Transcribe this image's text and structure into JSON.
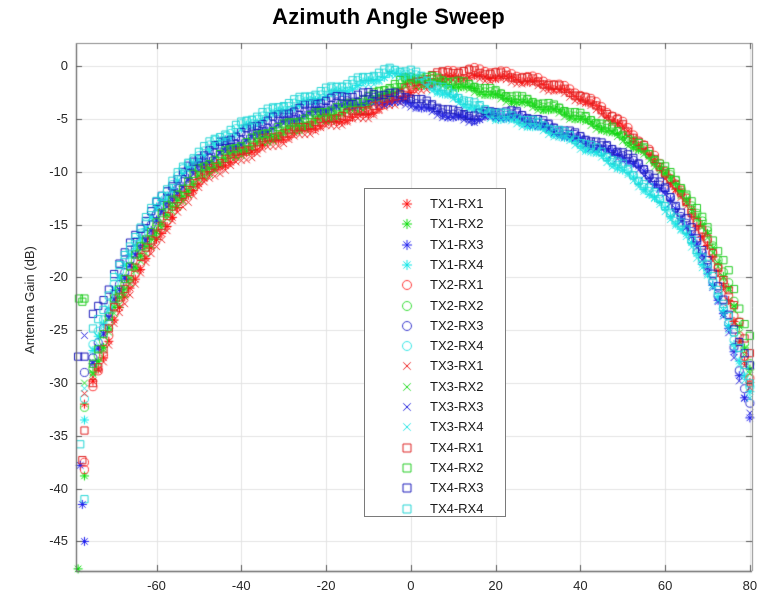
{
  "chart_data": {
    "type": "scatter",
    "title": "Azimuth Angle Sweep",
    "xlabel": "",
    "ylabel": "Antenna Gain (dB)",
    "xlim": [
      -79,
      80.5
    ],
    "ylim": [
      -47.8,
      2.2
    ],
    "xticks": [
      -60,
      -40,
      -20,
      0,
      20,
      40,
      60,
      80
    ],
    "yticks": [
      0,
      -5,
      -10,
      -15,
      -20,
      -25,
      -30,
      -35,
      -40,
      -45
    ],
    "grid": true,
    "legend_position": "center (inside axes)",
    "x": [
      -77,
      -75,
      -72,
      -70,
      -65,
      -60,
      -55,
      -50,
      -45,
      -40,
      -35,
      -30,
      -25,
      -20,
      -15,
      -10,
      -5,
      0,
      5,
      10,
      15,
      20,
      25,
      30,
      35,
      40,
      45,
      50,
      55,
      60,
      65,
      70,
      72,
      75,
      78,
      80
    ],
    "series": [
      {
        "name": "TX1-RX1",
        "color": "#ff0000",
        "marker": "asterisk",
        "values": [
          -32,
          -30,
          -27,
          -24,
          -20,
          -16.5,
          -13.5,
          -11,
          -9.5,
          -8.5,
          -7.5,
          -6.8,
          -6,
          -5.5,
          -5,
          -4.5,
          -3.5,
          -2.5,
          -1.5,
          -1,
          -1,
          -1,
          -1.2,
          -1.6,
          -2.2,
          -3,
          -4.2,
          -5.8,
          -7.8,
          -10.2,
          -13,
          -17,
          -19,
          -22,
          -27,
          -30
        ]
      },
      {
        "name": "TX1-RX2",
        "color": "#00dd00",
        "marker": "asterisk",
        "values": [
          -38.8,
          -29,
          -26,
          -23,
          -19,
          -15.5,
          -12.8,
          -10.5,
          -9,
          -8,
          -7,
          -6.2,
          -5.5,
          -4.8,
          -4.2,
          -3.5,
          -2.5,
          -1.5,
          -1.5,
          -1.8,
          -2.2,
          -2.8,
          -3.3,
          -3.8,
          -4.3,
          -5,
          -5.8,
          -6.8,
          -8.2,
          -10,
          -12.5,
          -16,
          -18,
          -21,
          -25.5,
          -28.5
        ]
      },
      {
        "name": "TX1-RX3",
        "color": "#1a1aee",
        "marker": "asterisk",
        "values": [
          -45,
          -28,
          -25,
          -22,
          -18,
          -14.5,
          -11.8,
          -9.5,
          -8.2,
          -7.2,
          -6.2,
          -5.3,
          -4.6,
          -4,
          -3.6,
          -3.4,
          -3.3,
          -3.5,
          -4.2,
          -4.8,
          -5,
          -4.6,
          -4.8,
          -5.5,
          -6.3,
          -7,
          -7.8,
          -8.5,
          -10,
          -12,
          -15,
          -19,
          -21.5,
          -25,
          -30,
          -33.3
        ]
      },
      {
        "name": "TX1-RX4",
        "color": "#00e5e5",
        "marker": "asterisk",
        "values": [
          -33.5,
          -27,
          -24,
          -21,
          -17,
          -13.5,
          -10.8,
          -8.7,
          -7.2,
          -6,
          -5,
          -4.2,
          -3.5,
          -2.8,
          -2.2,
          -1.5,
          -0.8,
          -0.8,
          -2,
          -3,
          -4,
          -4.8,
          -5.2,
          -5.8,
          -6.5,
          -7.5,
          -8.5,
          -9.8,
          -11.5,
          -13.5,
          -16,
          -19.5,
          -21.5,
          -24.5,
          -28.5,
          -31
        ]
      },
      {
        "name": "TX2-RX1",
        "color": "#ff3333",
        "marker": "circle",
        "values": [
          -37.5,
          -30.5,
          -26.5,
          -23.5,
          -19.5,
          -16,
          -13,
          -10.8,
          -9.3,
          -8.3,
          -7.3,
          -6.5,
          -5.8,
          -5.2,
          -4.7,
          -4.2,
          -3.2,
          -2,
          -1,
          -0.4,
          -0.3,
          -0.5,
          -0.8,
          -1.2,
          -1.8,
          -2.6,
          -3.8,
          -5.4,
          -7.4,
          -9.8,
          -12.6,
          -16.6,
          -18.6,
          -21.6,
          -26.5,
          -29.5
        ]
      },
      {
        "name": "TX2-RX2",
        "color": "#33dd33",
        "marker": "circle",
        "values": [
          -32.3,
          -28.5,
          -25.5,
          -22.5,
          -18.5,
          -15,
          -12.3,
          -10,
          -8.6,
          -7.6,
          -6.6,
          -5.8,
          -5.1,
          -4.4,
          -3.8,
          -3.1,
          -2.1,
          -1.2,
          -1.3,
          -1.6,
          -2,
          -2.6,
          -3.1,
          -3.6,
          -4.1,
          -4.8,
          -5.6,
          -6.6,
          -8,
          -9.8,
          -12.2,
          -15.7,
          -17.7,
          -20.6,
          -25,
          -28
        ]
      },
      {
        "name": "TX2-RX3",
        "color": "#3333cc",
        "marker": "circle",
        "values": [
          -29,
          -27.5,
          -24.5,
          -21.5,
          -17.5,
          -14,
          -11.4,
          -9.2,
          -7.9,
          -6.9,
          -5.9,
          -5,
          -4.3,
          -3.7,
          -3.3,
          -3.1,
          -3,
          -3.2,
          -3.9,
          -4.6,
          -4.9,
          -4.4,
          -4.6,
          -5.3,
          -6.1,
          -6.8,
          -7.6,
          -8.3,
          -9.8,
          -11.8,
          -14.8,
          -18.7,
          -21.2,
          -24.5,
          -29.5,
          -32
        ]
      },
      {
        "name": "TX2-RX4",
        "color": "#33e5e5",
        "marker": "circle",
        "values": [
          -31.5,
          -26.5,
          -23.5,
          -20.5,
          -16.5,
          -13,
          -10.4,
          -8.3,
          -6.8,
          -5.6,
          -4.6,
          -3.8,
          -3.1,
          -2.4,
          -1.8,
          -1.1,
          -0.5,
          -0.6,
          -1.8,
          -2.8,
          -3.8,
          -4.6,
          -5,
          -5.6,
          -6.3,
          -7.3,
          -8.3,
          -9.6,
          -11.3,
          -13.3,
          -15.8,
          -19.2,
          -21.2,
          -24.2,
          -28,
          -30.5
        ]
      },
      {
        "name": "TX3-RX1",
        "color": "#ee2222",
        "marker": "x",
        "values": [
          -31,
          -29.5,
          -27.5,
          -24.5,
          -20.5,
          -17,
          -14,
          -11.5,
          -10,
          -9,
          -8,
          -7.2,
          -6.4,
          -5.8,
          -5.3,
          -4.8,
          -3.8,
          -2.8,
          -1.8,
          -1.2,
          -1.2,
          -1.3,
          -1.5,
          -1.9,
          -2.5,
          -3.3,
          -4.5,
          -6.1,
          -8.1,
          -10.5,
          -13.3,
          -17.3,
          -19.3,
          -22.3,
          -27.3,
          -30.3
        ]
      },
      {
        "name": "TX3-RX2",
        "color": "#22dd22",
        "marker": "x",
        "values": [
          -30,
          -29,
          -26.5,
          -23.5,
          -19.5,
          -16,
          -13.2,
          -10.9,
          -9.3,
          -8.3,
          -7.3,
          -6.5,
          -5.8,
          -5.1,
          -4.5,
          -3.8,
          -2.8,
          -1.8,
          -1.7,
          -2,
          -2.4,
          -3,
          -3.5,
          -4,
          -4.5,
          -5.2,
          -6,
          -7,
          -8.5,
          -10.3,
          -12.8,
          -16.3,
          -18.3,
          -21.3,
          -26,
          -29
        ]
      },
      {
        "name": "TX3-RX3",
        "color": "#2222dd",
        "marker": "x",
        "values": [
          -25.5,
          -28,
          -25,
          -22,
          -18,
          -14.7,
          -12,
          -9.8,
          -8.4,
          -7.4,
          -6.4,
          -5.5,
          -4.8,
          -4.2,
          -3.8,
          -3.6,
          -3.5,
          -3.7,
          -4.4,
          -5,
          -5.2,
          -4.8,
          -5,
          -5.7,
          -6.5,
          -7.2,
          -8,
          -8.8,
          -10.3,
          -12.3,
          -15.3,
          -19.3,
          -21.8,
          -25.3,
          -30.5,
          -33
        ]
      },
      {
        "name": "TX3-RX4",
        "color": "#22e5e5",
        "marker": "x",
        "values": [
          -30.5,
          -27,
          -24,
          -21,
          -17,
          -13.7,
          -11,
          -8.9,
          -7.4,
          -6.2,
          -5.2,
          -4.4,
          -3.7,
          -3,
          -2.4,
          -1.7,
          -1,
          -1,
          -2.2,
          -3.2,
          -4.2,
          -5,
          -5.4,
          -6,
          -6.7,
          -7.7,
          -8.7,
          -10,
          -11.7,
          -13.7,
          -16.3,
          -19.8,
          -21.8,
          -24.8,
          -29,
          -31.5
        ]
      },
      {
        "name": "TX4-RX1",
        "color": "#dd2222",
        "marker": "square",
        "values": [
          -34.5,
          -30,
          -26,
          -23,
          -19,
          -15.7,
          -12.7,
          -10.4,
          -9,
          -8,
          -7,
          -6.3,
          -5.6,
          -5,
          -4.5,
          -4,
          -3,
          -1.8,
          -0.8,
          -0.5,
          -0.5,
          -0.7,
          -1,
          -1.4,
          -2,
          -2.8,
          -4,
          -5.6,
          -7.6,
          -10,
          -12.8,
          -16.5,
          -18.5,
          -21.2,
          -25,
          -27
        ]
      },
      {
        "name": "TX4-RX2",
        "color": "#22cc22",
        "marker": "square",
        "values": [
          -22,
          -28,
          -25,
          -22,
          -18,
          -14.7,
          -12,
          -9.8,
          -8.4,
          -7.4,
          -6.4,
          -5.6,
          -4.9,
          -4.2,
          -3.6,
          -2.9,
          -1.9,
          -1,
          -1.1,
          -1.4,
          -1.8,
          -2.4,
          -2.9,
          -3.4,
          -3.9,
          -4.6,
          -5.4,
          -6.4,
          -7.8,
          -9.6,
          -12,
          -15.2,
          -17,
          -19.5,
          -23.5,
          -25.5
        ]
      },
      {
        "name": "TX4-RX3",
        "color": "#1a1abb",
        "marker": "square",
        "values": [
          -27.5,
          -23.5,
          -22,
          -19.5,
          -16,
          -13,
          -10.6,
          -8.6,
          -7.3,
          -6.3,
          -5.3,
          -4.5,
          -3.8,
          -3.2,
          -2.8,
          -2.6,
          -2.6,
          -2.9,
          -3.6,
          -4.3,
          -4.6,
          -4.2,
          -4.4,
          -5.1,
          -5.9,
          -6.6,
          -7.4,
          -8.1,
          -9.6,
          -11.6,
          -14.5,
          -18.2,
          -20.5,
          -23.5,
          -26.5,
          -28.5
        ]
      },
      {
        "name": "TX4-RX4",
        "color": "#22d5d5",
        "marker": "square",
        "values": [
          -41,
          -25,
          -22.5,
          -20,
          -16,
          -12.8,
          -10.2,
          -8,
          -6.6,
          -5.4,
          -4.4,
          -3.6,
          -2.9,
          -2.2,
          -1.6,
          -0.9,
          -0.3,
          -0.4,
          -1.6,
          -2.6,
          -3.6,
          -4.4,
          -4.8,
          -5.4,
          -6.1,
          -7.1,
          -8.1,
          -9.4,
          -11.1,
          -13.1,
          -15.6,
          -18.8,
          -20.8,
          -23.5,
          -27.5,
          -30
        ]
      }
    ]
  }
}
